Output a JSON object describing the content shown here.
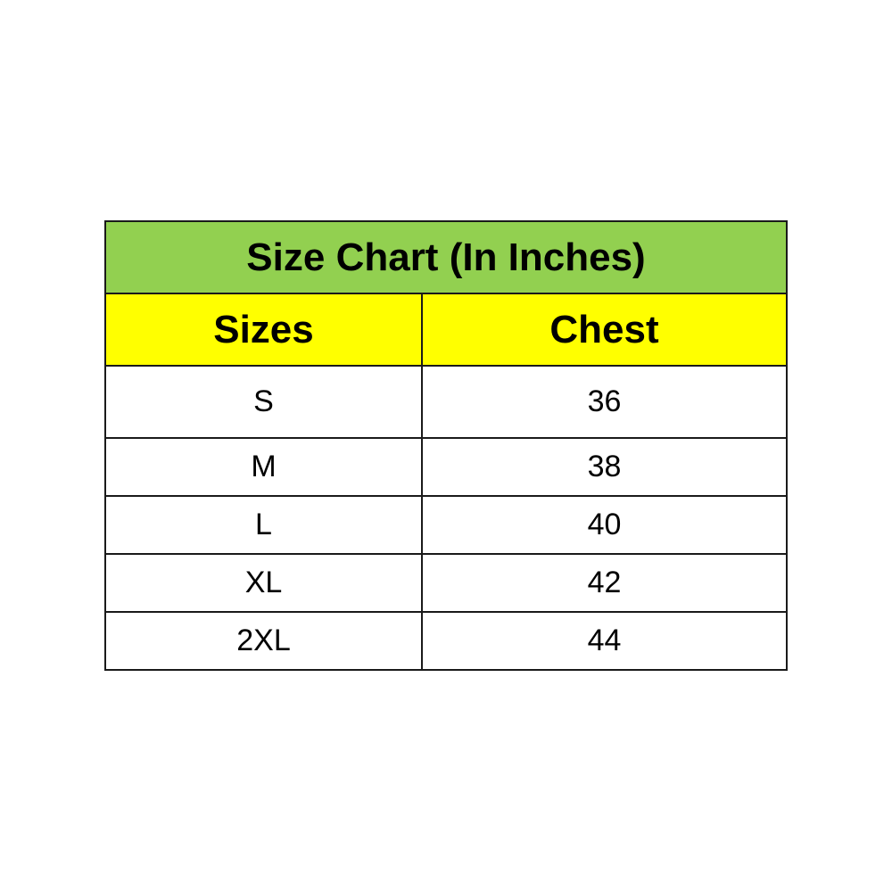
{
  "title": "Size Chart (In Inches)",
  "colors": {
    "title_bg": "#92D050",
    "header_bg": "#FFFF00",
    "border": "#1a1a1a"
  },
  "headers": [
    "Sizes",
    "Chest"
  ],
  "rows": [
    [
      "S",
      "36"
    ],
    [
      "M",
      "38"
    ],
    [
      "L",
      "40"
    ],
    [
      "XL",
      "42"
    ],
    [
      "2XL",
      "44"
    ]
  ]
}
